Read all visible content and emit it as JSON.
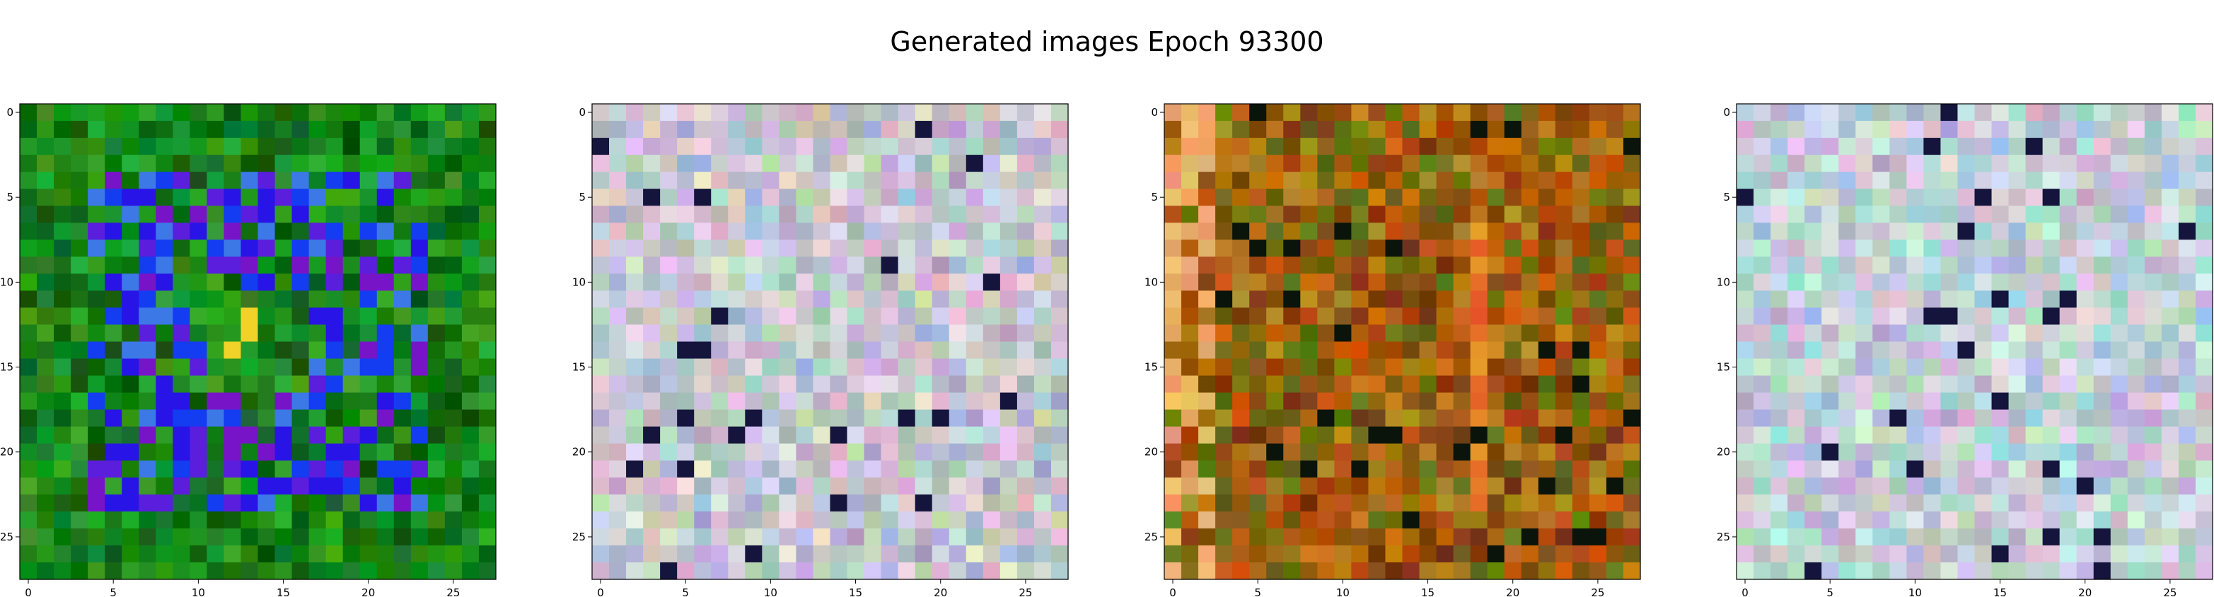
{
  "figure": {
    "title": "Generated images Epoch 93300"
  },
  "palettes": {
    "green": {
      "base": [
        "#0a7a10",
        "#168c1a",
        "#0f6e0a",
        "#1f9a22",
        "#2a8c15",
        "#0b5c0a",
        "#138a2c",
        "#3b9b1c",
        "#0d6e26",
        "#22a030"
      ]
    },
    "pastel": {
      "base": [
        "#c9b6d9",
        "#b5c9c0",
        "#d8c6c9",
        "#a7b9d6",
        "#c4d6b0",
        "#e0d0e8",
        "#bcd8d0",
        "#d6b8c8",
        "#a8c4b8",
        "#cdd0e4",
        "#e6e0d8",
        "#b0a8c8"
      ]
    },
    "warm": {
      "base": [
        "#b65a10",
        "#a34a0a",
        "#c07818",
        "#8a5510",
        "#5f6a10",
        "#9c6a12",
        "#c8600e",
        "#7e3e0c",
        "#b08a20",
        "#6e7a14"
      ]
    },
    "pastel2": {
      "base": [
        "#c8c0e0",
        "#b8d8d0",
        "#d8c8d8",
        "#a8c8e0",
        "#c0e0c8",
        "#e0d0e8",
        "#b0d0c0",
        "#d0b8d0",
        "#a0d8d0",
        "#d8d8e8",
        "#c8e8e0",
        "#b8b0d0"
      ]
    }
  },
  "chart_data": [
    {
      "type": "heatmap",
      "title": "",
      "grid_size": [
        28,
        28
      ],
      "xlim": [
        -0.5,
        27.5
      ],
      "ylim": [
        27.5,
        -0.5
      ],
      "xticks": [
        0,
        5,
        10,
        15,
        20,
        25
      ],
      "yticks": [
        0,
        5,
        10,
        15,
        20,
        25
      ],
      "palette": "green",
      "seed": 11
    },
    {
      "type": "heatmap",
      "title": "",
      "grid_size": [
        28,
        28
      ],
      "xlim": [
        -0.5,
        27.5
      ],
      "ylim": [
        27.5,
        -0.5
      ],
      "xticks": [
        0,
        5,
        10,
        15,
        20,
        25
      ],
      "yticks": [
        0,
        5,
        10,
        15,
        20,
        25
      ],
      "palette": "pastel",
      "seed": 23
    },
    {
      "type": "heatmap",
      "title": "",
      "grid_size": [
        28,
        28
      ],
      "xlim": [
        -0.5,
        27.5
      ],
      "ylim": [
        27.5,
        -0.5
      ],
      "xticks": [
        0,
        5,
        10,
        15,
        20,
        25
      ],
      "yticks": [
        0,
        5,
        10,
        15,
        20,
        25
      ],
      "palette": "warm",
      "seed": 37
    },
    {
      "type": "heatmap",
      "title": "",
      "grid_size": [
        28,
        28
      ],
      "xlim": [
        -0.5,
        27.5
      ],
      "ylim": [
        27.5,
        -0.5
      ],
      "xticks": [
        0,
        5,
        10,
        15,
        20,
        25
      ],
      "yticks": [
        0,
        5,
        10,
        15,
        20,
        25
      ],
      "palette": "pastel2",
      "seed": 51
    }
  ]
}
